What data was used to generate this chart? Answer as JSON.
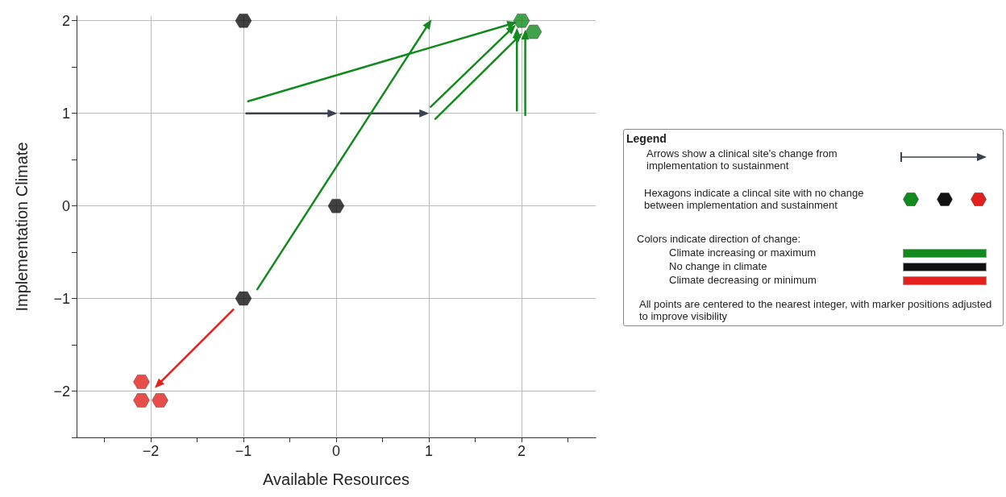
{
  "chart_data": {
    "type": "scatter",
    "xlabel": "Available Resources",
    "ylabel": "Implementation Climate",
    "xlim": [
      -2.8,
      2.8
    ],
    "ylim": [
      -2.5,
      2.05
    ],
    "xticks": [
      {
        "value": -2.5,
        "label": null
      },
      -2,
      {
        "value": -1.5,
        "label": null
      },
      -1,
      {
        "value": -0.5,
        "label": null
      },
      0,
      {
        "value": 0.5,
        "label": null
      },
      1,
      {
        "value": 1.5,
        "label": null
      },
      2,
      {
        "value": 2.5,
        "label": null
      }
    ],
    "yticks": [
      {
        "value": -2.5,
        "label": null
      },
      -2,
      {
        "value": -1.5,
        "label": null
      },
      -1,
      {
        "value": -0.5,
        "label": null
      },
      0,
      {
        "value": 0.5,
        "label": null
      },
      1,
      {
        "value": 1.5,
        "label": null
      },
      2
    ],
    "grid": true,
    "series": [
      {
        "color": "#138a1e",
        "x": [
          2,
          2.13
        ],
        "values": [
          2,
          1.88
        ]
      },
      {
        "color": "#111111",
        "x": [
          -1,
          0,
          -1
        ],
        "values": [
          2,
          0,
          -1
        ]
      },
      {
        "color": "#e3211c",
        "x": [
          -2.1,
          -2.1,
          -1.9
        ],
        "values": [
          -1.9,
          -2.1,
          -2.1
        ]
      },
      {
        "type": "line",
        "marker": "triangle",
        "color": "#3a4250",
        "x": [
          -0.97,
          -0.04
        ],
        "values": [
          1,
          1
        ]
      },
      {
        "type": "line",
        "marker": "triangle",
        "color": "#3a4250",
        "x": [
          0.05,
          0.95
        ],
        "values": [
          1,
          1
        ]
      },
      {
        "type": "line",
        "marker": "triangle",
        "color": "#138a1e",
        "x": [
          -0.95,
          1.9
        ],
        "values": [
          1.13,
          1.97
        ]
      },
      {
        "type": "line",
        "marker": "triangle",
        "color": "#138a1e",
        "x": [
          -0.85,
          1.0
        ],
        "values": [
          -0.9,
          1.97
        ]
      },
      {
        "type": "line",
        "marker": "triangle",
        "color": "#138a1e",
        "x": [
          1.02,
          1.9
        ],
        "values": [
          1.07,
          1.92
        ]
      },
      {
        "type": "line",
        "marker": "triangle",
        "color": "#138a1e",
        "x": [
          1.07,
          1.97
        ],
        "values": [
          0.94,
          1.83
        ]
      },
      {
        "type": "line",
        "marker": "triangle",
        "color": "#138a1e",
        "x": [
          1.95,
          1.95
        ],
        "values": [
          1.03,
          1.87
        ]
      },
      {
        "type": "line",
        "marker": "triangle",
        "color": "#138a1e",
        "x": [
          2.04,
          2.04
        ],
        "values": [
          0.98,
          1.85
        ]
      },
      {
        "type": "line",
        "marker": "triangle",
        "color": "#e3211c",
        "x": [
          -1.11,
          -1.92
        ],
        "values": [
          -1.12,
          -1.93
        ]
      }
    ],
    "annotations": [
      "Legend",
      "Arrows show a clinical site's change from implementation to sustainment",
      "Hexagons indicate a clincal site with no change between implementation and sustainment",
      "Colors indicate direction of change:",
      "Climate increasing or maximum",
      "No change in climate",
      "Climate decreasing or minimum",
      "All points are centered to the nearest integer, with marker positions adjusted to improve visibility"
    ]
  }
}
